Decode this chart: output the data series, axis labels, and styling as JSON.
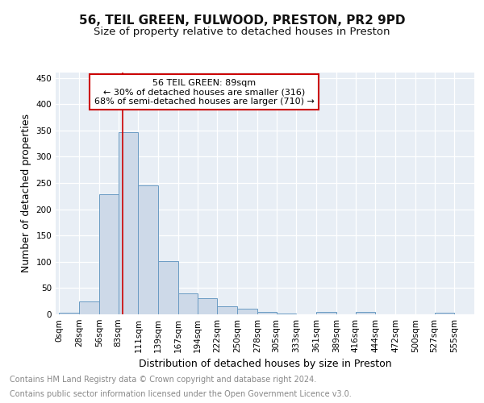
{
  "title1": "56, TEIL GREEN, FULWOOD, PRESTON, PR2 9PD",
  "title2": "Size of property relative to detached houses in Preston",
  "xlabel": "Distribution of detached houses by size in Preston",
  "ylabel": "Number of detached properties",
  "annotation_line1": "56 TEIL GREEN: 89sqm",
  "annotation_line2": "← 30% of detached houses are smaller (316)",
  "annotation_line3": "68% of semi-detached houses are larger (710) →",
  "footer1": "Contains HM Land Registry data © Crown copyright and database right 2024.",
  "footer2": "Contains public sector information licensed under the Open Government Licence v3.0.",
  "bar_left_edges": [
    0,
    28,
    56,
    83,
    111,
    139,
    167,
    194,
    222,
    250,
    278,
    305,
    333,
    361,
    389,
    416,
    444,
    472,
    500,
    527
  ],
  "bar_widths": [
    28,
    28,
    27,
    28,
    28,
    28,
    27,
    28,
    28,
    28,
    27,
    28,
    28,
    28,
    27,
    28,
    28,
    28,
    27,
    28
  ],
  "bar_heights": [
    3,
    25,
    228,
    347,
    246,
    101,
    40,
    30,
    15,
    11,
    5,
    1,
    0,
    4,
    0,
    4,
    0,
    0,
    0,
    3
  ],
  "bar_face_color": "#cdd9e8",
  "bar_edge_color": "#6a9bc3",
  "vline_x": 89,
  "vline_color": "#cc0000",
  "annotation_box_edge": "#cc0000",
  "annotation_box_face": "#ffffff",
  "plot_bg_color": "#e8eef5",
  "tick_labels": [
    "0sqm",
    "28sqm",
    "56sqm",
    "83sqm",
    "111sqm",
    "139sqm",
    "167sqm",
    "194sqm",
    "222sqm",
    "250sqm",
    "278sqm",
    "305sqm",
    "333sqm",
    "361sqm",
    "389sqm",
    "416sqm",
    "444sqm",
    "472sqm",
    "500sqm",
    "527sqm",
    "555sqm"
  ],
  "tick_positions": [
    0,
    28,
    56,
    83,
    111,
    139,
    167,
    194,
    222,
    250,
    278,
    305,
    333,
    361,
    389,
    416,
    444,
    472,
    500,
    527,
    555
  ],
  "ylim": [
    0,
    460
  ],
  "xlim": [
    -5,
    583
  ],
  "yticks": [
    0,
    50,
    100,
    150,
    200,
    250,
    300,
    350,
    400,
    450
  ],
  "grid_color": "#ffffff",
  "title1_fontsize": 11,
  "title2_fontsize": 9.5,
  "axis_label_fontsize": 9,
  "tick_fontsize": 7.5,
  "annotation_fontsize": 8,
  "footer_fontsize": 7
}
